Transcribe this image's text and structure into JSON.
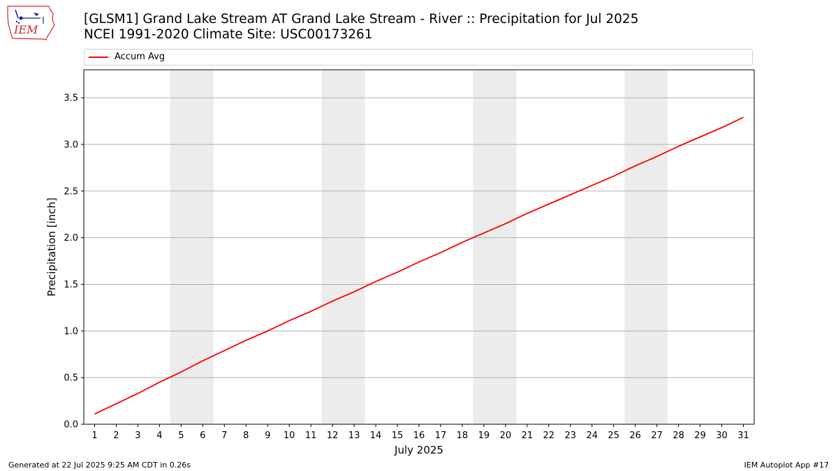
{
  "header": {
    "title_line1": "[GLSM1] Grand Lake Stream  AT Grand Lake Stream - River :: Precipitation for Jul 2025",
    "title_line2": "NCEI 1991-2020 Climate Site: USC00173261"
  },
  "logo": {
    "text": "IEM",
    "color": "#d0282a",
    "icon": "iem-iowa-logo-icon"
  },
  "footer": {
    "left": "Generated at 22 Jul 2025 9:25 AM CDT in 0.26s",
    "right": "IEM Autoplot App #17"
  },
  "colors": {
    "line": "#ff0000",
    "weekend_band": "#ececec",
    "grid": "#b0b0b0"
  },
  "chart_data": {
    "type": "line",
    "xlabel": "July 2025",
    "ylabel": "Precipitation [inch]",
    "xlim": [
      0.5,
      31.5
    ],
    "ylim": [
      0,
      3.8
    ],
    "x_ticks": [
      1,
      2,
      3,
      4,
      5,
      6,
      7,
      8,
      9,
      10,
      11,
      12,
      13,
      14,
      15,
      16,
      17,
      18,
      19,
      20,
      21,
      22,
      23,
      24,
      25,
      26,
      27,
      28,
      29,
      30,
      31
    ],
    "y_ticks": [
      "0.0",
      "0.5",
      "1.0",
      "1.5",
      "2.0",
      "2.5",
      "3.0",
      "3.5"
    ],
    "grid": "horizontal",
    "legend_placement": "top",
    "weekend_bands": [
      [
        5,
        6
      ],
      [
        12,
        13
      ],
      [
        19,
        20
      ],
      [
        26,
        27
      ]
    ],
    "series": [
      {
        "name": "Accum Avg",
        "x": [
          1,
          2,
          3,
          4,
          5,
          6,
          7,
          8,
          9,
          10,
          11,
          12,
          13,
          14,
          15,
          16,
          17,
          18,
          19,
          20,
          21,
          22,
          23,
          24,
          25,
          26,
          27,
          28,
          29,
          30,
          31
        ],
        "values": [
          0.11,
          0.22,
          0.33,
          0.45,
          0.56,
          0.68,
          0.79,
          0.9,
          1.0,
          1.11,
          1.21,
          1.32,
          1.42,
          1.53,
          1.63,
          1.74,
          1.84,
          1.95,
          2.05,
          2.15,
          2.26,
          2.36,
          2.46,
          2.56,
          2.66,
          2.77,
          2.87,
          2.98,
          3.08,
          3.18,
          3.29
        ]
      }
    ]
  }
}
